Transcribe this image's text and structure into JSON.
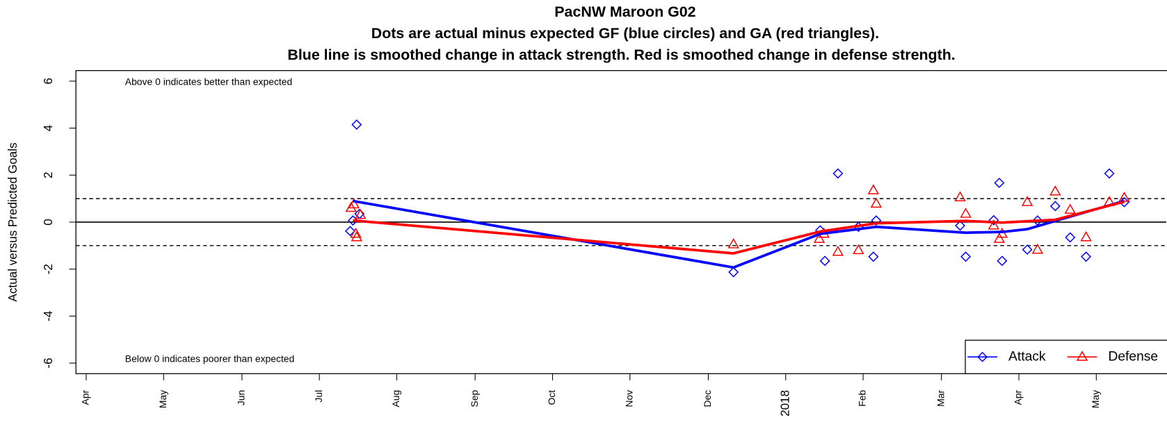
{
  "chart_data": {
    "type": "scatter",
    "title": "PacNW Maroon G02",
    "subtitle": [
      "Dots are actual minus expected GF (blue circles) and GA (red triangles).",
      "Blue line is smoothed change in attack strength. Red is smoothed change in defense strength."
    ],
    "y_label": "Actual versus Predicted Goals",
    "annotations": [
      "Above 0 indicates better than expected",
      "Below 0 indicates poorer than expected"
    ],
    "xlim": [
      2017.239,
      2018.408
    ],
    "xticks": [
      {
        "value": 2017.25,
        "label": "Apr"
      },
      {
        "value": 2017.333,
        "label": "May"
      },
      {
        "value": 2017.417,
        "label": "Jun"
      },
      {
        "value": 2017.5,
        "label": "Jul"
      },
      {
        "value": 2017.583,
        "label": "Aug"
      },
      {
        "value": 2017.667,
        "label": "Sep"
      },
      {
        "value": 2017.75,
        "label": "Oct"
      },
      {
        "value": 2017.833,
        "label": "Nov"
      },
      {
        "value": 2017.917,
        "label": "Dec"
      },
      {
        "value": 2018.0,
        "label": "2018"
      },
      {
        "value": 2018.083,
        "label": "Feb"
      },
      {
        "value": 2018.167,
        "label": "Mar"
      },
      {
        "value": 2018.25,
        "label": "Apr"
      },
      {
        "value": 2018.333,
        "label": "May"
      }
    ],
    "ylim": [
      -6.45,
      6.45
    ],
    "yticks": [
      -6,
      -4,
      -2,
      0,
      2,
      4,
      6
    ],
    "solid_hlines": [
      0
    ],
    "dashed_hlines": [
      1,
      -1
    ],
    "legend": "bottom-right",
    "series": [
      {
        "name": "Attack",
        "color": "#0000ff",
        "marker": "diamond",
        "x": [
          2017.533,
          2017.536,
          2017.54,
          2017.543,
          2017.944,
          2018.037,
          2018.042,
          2018.056,
          2018.078,
          2018.094,
          2018.097,
          2018.187,
          2018.193,
          2018.223,
          2018.229,
          2018.232,
          2018.259,
          2018.27,
          2018.289,
          2018.305,
          2018.322,
          2018.347,
          2018.363
        ],
        "values": [
          -0.38,
          0.07,
          4.15,
          0.35,
          -2.13,
          -0.35,
          -1.65,
          2.07,
          -0.2,
          -1.47,
          0.07,
          -0.15,
          -1.47,
          0.08,
          1.67,
          -1.65,
          -1.17,
          0.07,
          0.68,
          -0.65,
          -1.47,
          2.07,
          0.85
        ],
        "smooth_x": [
          2017.536,
          2017.944,
          2018.037,
          2018.097,
          2018.193,
          2018.232,
          2018.259,
          2018.289,
          2018.363
        ],
        "smooth_values": [
          0.9,
          -1.93,
          -0.5,
          -0.2,
          -0.45,
          -0.42,
          -0.3,
          0.05,
          0.9
        ]
      },
      {
        "name": "Defense",
        "color": "#ff0000",
        "marker": "triangle",
        "x": [
          2017.534,
          2017.537,
          2017.539,
          2017.54,
          2017.544,
          2017.944,
          2018.036,
          2018.041,
          2018.056,
          2018.078,
          2018.094,
          2018.097,
          2018.187,
          2018.193,
          2018.223,
          2018.229,
          2018.232,
          2018.259,
          2018.27,
          2018.289,
          2018.305,
          2018.322,
          2018.347,
          2018.363
        ],
        "values": [
          0.6,
          0.75,
          -0.5,
          -0.65,
          0.3,
          -0.95,
          -0.72,
          -0.5,
          -1.27,
          -1.2,
          1.35,
          0.78,
          1.05,
          0.35,
          -0.15,
          -0.72,
          -0.5,
          0.85,
          -1.18,
          1.3,
          0.52,
          -0.65,
          0.85,
          1.03
        ],
        "smooth_x": [
          2017.536,
          2017.944,
          2018.037,
          2018.097,
          2018.193,
          2018.232,
          2018.289,
          2018.363
        ],
        "smooth_values": [
          0.07,
          -1.33,
          -0.4,
          -0.05,
          0.05,
          -0.02,
          0.1,
          0.87
        ]
      }
    ]
  }
}
